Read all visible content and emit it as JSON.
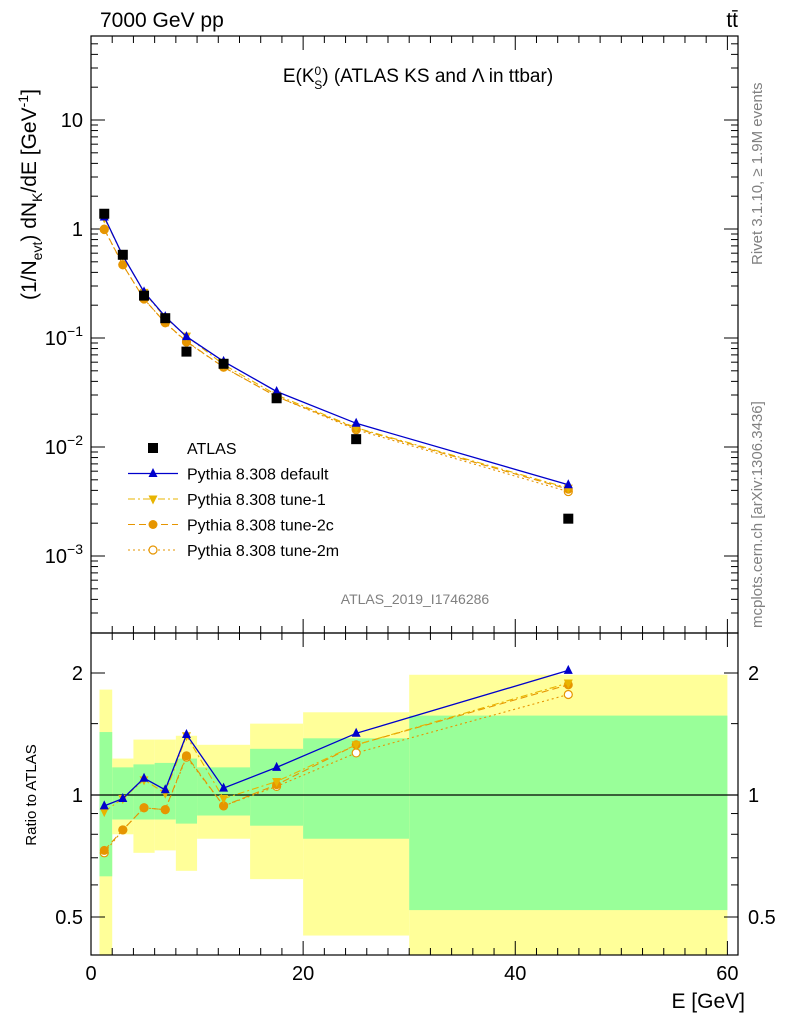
{
  "header": {
    "energy_label": "7000 GeV pp",
    "process_label": "tt̄"
  },
  "side_text": {
    "rivet": "Rivet 3.1.10, ≥ 1.9M events",
    "mcplots": "mcplots.cern.ch [arXiv:1306.3436]"
  },
  "analysis_id": "ATLAS_2019_I1746286",
  "chart_data": [
    {
      "type": "line",
      "title": "E(K⁰_S) (ATLAS KS and Λ in ttbar)",
      "title_main": "E(K",
      "title_sup": "0",
      "title_sub": "S",
      "title_rest": ") (ATLAS KS and Λ in ttbar)",
      "ylabel": "(1/N_evt) dN_K/dE [GeV⁻¹]",
      "ylabel_parts": {
        "a": "(1/N",
        "b": "evt",
        "c": ") dN",
        "d": "K",
        "e": "/dE [GeV",
        "f": "-1",
        "g": "]"
      },
      "yscale": "log",
      "xlim": [
        0,
        61
      ],
      "ylim": [
        0.00018,
        70
      ],
      "yticks": [
        {
          "value": 0.001,
          "base": "10",
          "exp": "−3"
        },
        {
          "value": 0.01,
          "base": "10",
          "exp": "−2"
        },
        {
          "value": 0.1,
          "base": "10",
          "exp": "−1"
        },
        {
          "value": 1,
          "base": "1",
          "exp": ""
        },
        {
          "value": 10,
          "base": "10",
          "exp": ""
        }
      ],
      "legend_position": "lower-left",
      "x": [
        1.25,
        3,
        5,
        7,
        9,
        12.5,
        17.5,
        25,
        45
      ],
      "series": [
        {
          "name": "ATLAS",
          "color": "#000000",
          "marker": "square",
          "line": "none",
          "values": [
            1.38,
            0.58,
            0.245,
            0.152,
            0.075,
            0.058,
            0.028,
            0.0118,
            0.0022
          ]
        },
        {
          "name": "Pythia 8.308 default",
          "color": "#0000cc",
          "marker": "triangle-up",
          "line": "solid",
          "values": [
            1.29,
            0.57,
            0.265,
            0.157,
            0.103,
            0.061,
            0.0323,
            0.0165,
            0.0045
          ]
        },
        {
          "name": "Pythia 8.308 tune-1",
          "color": "#e8b400",
          "marker": "triangle-down",
          "line": "dashdot",
          "values": [
            1.26,
            0.57,
            0.262,
            0.154,
            0.104,
            0.057,
            0.03,
            0.015,
            0.0042
          ]
        },
        {
          "name": "Pythia 8.308 tune-2c",
          "color": "#e69500",
          "marker": "circle",
          "line": "dashed",
          "values": [
            1.0,
            0.47,
            0.228,
            0.138,
            0.093,
            0.054,
            0.029,
            0.0148,
            0.0041
          ]
        },
        {
          "name": "Pythia 8.308 tune-2m",
          "color": "#e69500",
          "marker": "open-circle",
          "line": "dotted",
          "values": [
            0.99,
            0.47,
            0.228,
            0.138,
            0.092,
            0.054,
            0.029,
            0.0144,
            0.0039
          ]
        }
      ]
    },
    {
      "type": "line",
      "xlabel": "E [GeV]",
      "ylabel": "Ratio to ATLAS",
      "xlim": [
        0,
        61
      ],
      "ylim": [
        0.35,
        2.3
      ],
      "xticks": [
        0,
        20,
        40,
        60
      ],
      "yticks": [
        0.5,
        1,
        2
      ],
      "reference": 1,
      "bins": [
        {
          "lo": 0.8,
          "hi": 2,
          "inner": [
            0.63,
            1.43
          ],
          "outer": [
            0.35,
            1.82
          ]
        },
        {
          "lo": 2,
          "hi": 4,
          "inner": [
            0.87,
            1.17
          ],
          "outer": [
            0.8,
            1.23
          ]
        },
        {
          "lo": 4,
          "hi": 6,
          "inner": [
            0.87,
            1.19
          ],
          "outer": [
            0.72,
            1.37
          ]
        },
        {
          "lo": 6,
          "hi": 8,
          "inner": [
            0.87,
            1.2
          ],
          "outer": [
            0.73,
            1.37
          ]
        },
        {
          "lo": 8,
          "hi": 10,
          "inner": [
            0.85,
            1.23
          ],
          "outer": [
            0.65,
            1.4
          ]
        },
        {
          "lo": 10,
          "hi": 15,
          "inner": [
            0.89,
            1.17
          ],
          "outer": [
            0.78,
            1.33
          ]
        },
        {
          "lo": 15,
          "hi": 20,
          "inner": [
            0.84,
            1.3
          ],
          "outer": [
            0.62,
            1.5
          ]
        },
        {
          "lo": 20,
          "hi": 30,
          "inner": [
            0.78,
            1.38
          ],
          "outer": [
            0.45,
            1.6
          ]
        },
        {
          "lo": 30,
          "hi": 60,
          "inner": [
            0.52,
            1.57
          ],
          "outer": [
            0.35,
            1.98
          ]
        }
      ],
      "series": [
        {
          "name": "Pythia 8.308 default",
          "color": "#0000cc",
          "marker": "triangle-up",
          "line": "solid",
          "values": [
            0.94,
            0.98,
            1.1,
            1.03,
            1.41,
            1.04,
            1.17,
            1.42,
            2.03
          ]
        },
        {
          "name": "Pythia 8.308 tune-1",
          "color": "#e8b400",
          "marker": "triangle-down",
          "line": "dashdot",
          "values": [
            0.91,
            0.98,
            1.09,
            1.01,
            1.4,
            0.98,
            1.08,
            1.33,
            1.89
          ]
        },
        {
          "name": "Pythia 8.308 tune-2c",
          "color": "#e69500",
          "marker": "circle",
          "line": "dashed",
          "values": [
            0.73,
            0.82,
            0.93,
            0.92,
            1.25,
            0.94,
            1.06,
            1.33,
            1.87
          ]
        },
        {
          "name": "Pythia 8.308 tune-2m",
          "color": "#e69500",
          "marker": "open-circle",
          "line": "dotted",
          "values": [
            0.72,
            0.82,
            0.93,
            0.92,
            1.24,
            0.94,
            1.05,
            1.27,
            1.77
          ]
        }
      ]
    }
  ]
}
